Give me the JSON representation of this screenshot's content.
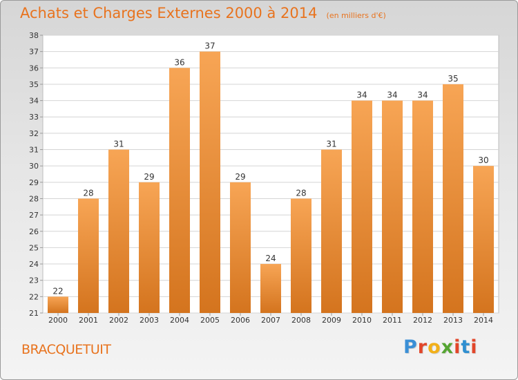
{
  "title": "Achats et Charges Externes 2000 à 2014",
  "subtitle": "(en milliers d'€)",
  "commune": "BRACQUETUIT",
  "brand": {
    "letters": [
      "P",
      "r",
      "o",
      "x",
      "i",
      "t",
      "i"
    ],
    "colors": [
      "#3a8fd6",
      "#e2462a",
      "#f2b019",
      "#55a532",
      "#e2462a",
      "#2f8fd0",
      "#e2462a"
    ]
  },
  "colors": {
    "accent": "#e8731e",
    "bar_top": "#f7a555",
    "bar_bottom": "#d4741e"
  },
  "chart_data": {
    "type": "bar",
    "title": "Achats et Charges Externes 2000 à 2014",
    "subtitle": "(en milliers d'€)",
    "categories": [
      "2000",
      "2001",
      "2002",
      "2003",
      "2004",
      "2005",
      "2006",
      "2007",
      "2008",
      "2009",
      "2010",
      "2011",
      "2012",
      "2013",
      "2014"
    ],
    "values": [
      22,
      28,
      31,
      29,
      36,
      37,
      29,
      24,
      28,
      31,
      34,
      34,
      34,
      35,
      30
    ],
    "yticks": [
      21,
      22,
      23,
      24,
      25,
      26,
      27,
      28,
      29,
      30,
      31,
      32,
      33,
      34,
      35,
      36,
      37,
      38
    ],
    "ylim": [
      21,
      38
    ],
    "grid": true,
    "xlabel": "",
    "ylabel": ""
  }
}
